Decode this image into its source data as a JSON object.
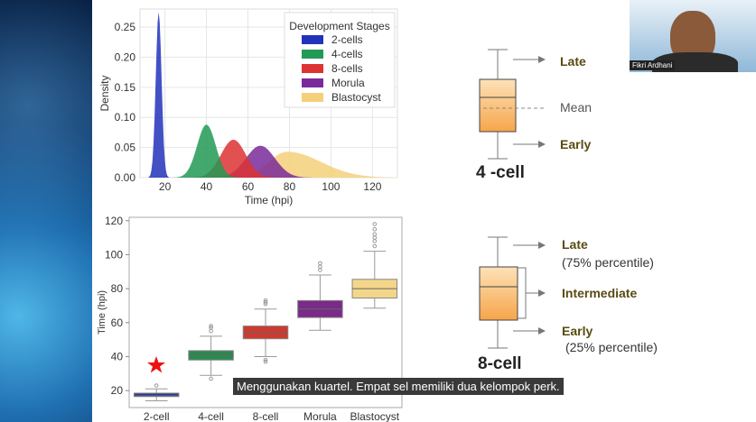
{
  "video": {
    "subtitle": "Menggunakan kuartel. Empat sel memiliki dua kelompok perk.",
    "participant_name": "Fikri Ardhani"
  },
  "diagram_4cell": {
    "title": "4 -cell",
    "late": "Late",
    "mean": "Mean",
    "early": "Early"
  },
  "diagram_8cell": {
    "title": "8-cell",
    "late": "Late",
    "late_note": "(75% percentile)",
    "intermediate": "Intermediate",
    "early": "Early",
    "early_note": "(25% percentile)"
  },
  "chart_data": [
    {
      "type": "area",
      "title": "",
      "xlabel": "Time (hpi)",
      "ylabel": "Density",
      "xlim": [
        8,
        132
      ],
      "ylim": [
        0,
        0.28
      ],
      "xticks": [
        "20",
        "40",
        "60",
        "80",
        "100",
        "120"
      ],
      "yticks": [
        "0.00",
        "0.05",
        "0.10",
        "0.15",
        "0.20",
        "0.25"
      ],
      "legend_title": "Development Stages",
      "legend_position": "top-right",
      "series": [
        {
          "name": "2-cells",
          "color": "#2233bb",
          "mean": 17,
          "sd": 1.4,
          "peak": 0.275
        },
        {
          "name": "4-cells",
          "color": "#229955",
          "mean": 40,
          "sd": 4.5,
          "peak": 0.088
        },
        {
          "name": "8-cells",
          "color": "#dd3333",
          "mean": 53,
          "sd": 6,
          "peak": 0.063
        },
        {
          "name": "Morula",
          "color": "#7a2a99",
          "mean": 66,
          "sd": 7,
          "peak": 0.053
        },
        {
          "name": "Blastocyst",
          "color": "#f5d07a",
          "mean": 79,
          "sd": 9,
          "peak": 0.043
        }
      ]
    },
    {
      "type": "box",
      "xlabel": "",
      "ylabel": "Time (hpi)",
      "ylim": [
        10,
        122
      ],
      "yticks": [
        "20",
        "40",
        "60",
        "80",
        "100",
        "120"
      ],
      "categories": [
        "2-cell",
        "4-cell",
        "8-cell",
        "Morula",
        "Blastocyst"
      ],
      "series": [
        {
          "name": "2-cell",
          "color": "#2a3a99",
          "whislo": 14,
          "q1": 16.5,
          "med": 17,
          "q3": 18.5,
          "whishi": 21,
          "outliers": [
            23
          ]
        },
        {
          "name": "4-cell",
          "color": "#2a8a50",
          "whislo": 29,
          "q1": 38,
          "med": 41,
          "q3": 43.5,
          "whishi": 52,
          "outliers": [
            27,
            55,
            57,
            58
          ]
        },
        {
          "name": "8-cell",
          "color": "#cc3a30",
          "whislo": 40,
          "q1": 50.5,
          "med": 54,
          "q3": 58,
          "whishi": 68,
          "outliers": [
            37,
            38,
            71,
            72,
            73
          ]
        },
        {
          "name": "Morula",
          "color": "#7a2a88",
          "whislo": 55.5,
          "q1": 63,
          "med": 68,
          "q3": 73,
          "whishi": 88,
          "outliers": [
            91,
            93,
            95
          ]
        },
        {
          "name": "Blastocyst",
          "color": "#f3d68a",
          "whislo": 68.5,
          "q1": 74.5,
          "med": 80,
          "q3": 85.5,
          "whishi": 102,
          "outliers": [
            105,
            108,
            110,
            112,
            115,
            118
          ]
        }
      ]
    }
  ]
}
